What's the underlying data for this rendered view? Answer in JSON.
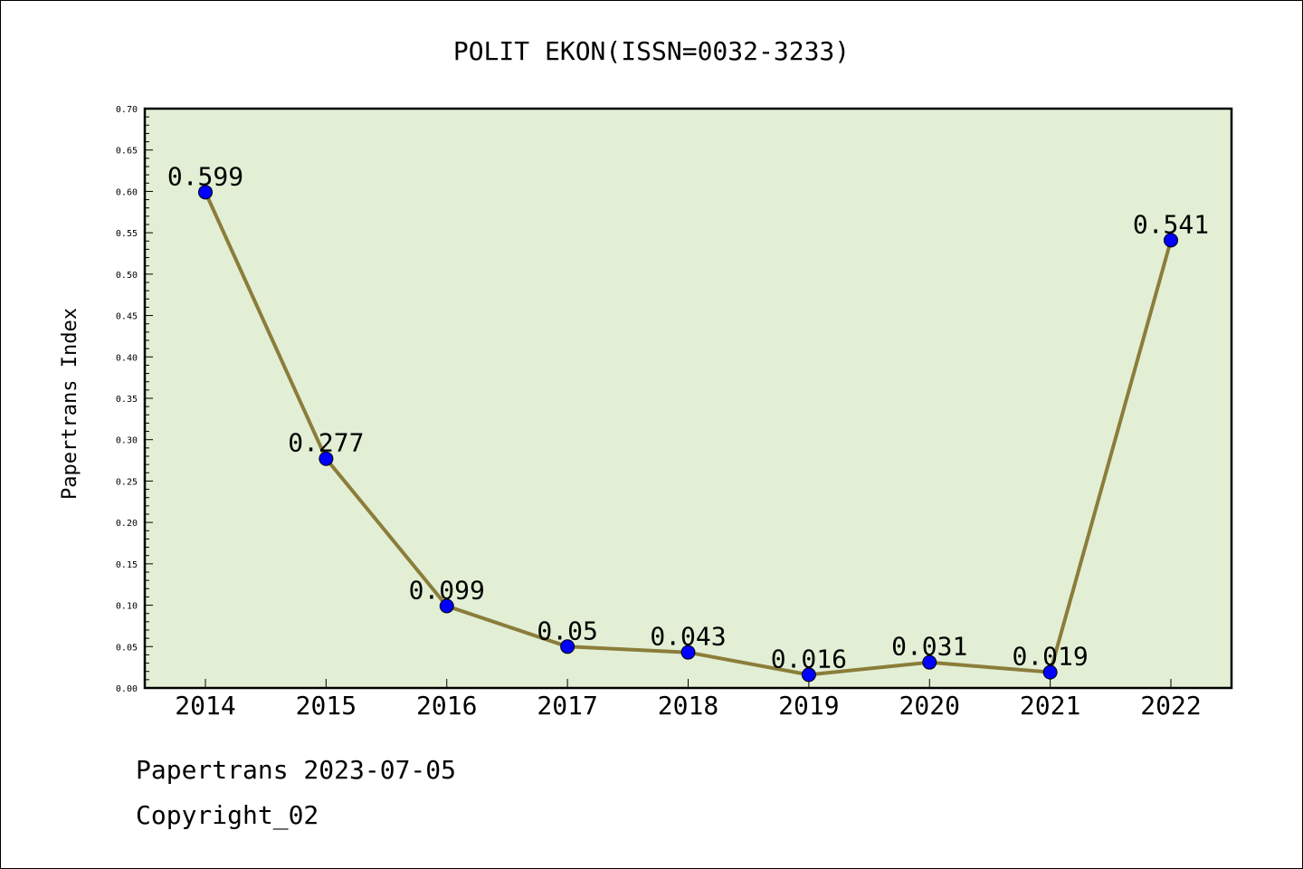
{
  "chart_data": {
    "type": "line",
    "title": "POLIT EKON(ISSN=0032-3233)",
    "xlabel": "",
    "ylabel": "Papertrans Index",
    "categories": [
      "2014",
      "2015",
      "2016",
      "2017",
      "2018",
      "2019",
      "2020",
      "2021",
      "2022"
    ],
    "series": [
      {
        "values": [
          0.599,
          0.277,
          0.099,
          0.05,
          0.043,
          0.016,
          0.031,
          0.019,
          0.541
        ],
        "data_labels": [
          "0.599",
          "0.277",
          "0.099",
          "0.05",
          "0.043",
          "0.016",
          "0.031",
          "0.019",
          "0.541"
        ]
      }
    ],
    "ylim": [
      0,
      0.7
    ],
    "yticks": [
      "0.00",
      "0.05",
      "0.10",
      "0.15",
      "0.20",
      "0.25",
      "0.30",
      "0.35",
      "0.40",
      "0.45",
      "0.50",
      "0.55",
      "0.60",
      "0.65",
      "0.70"
    ],
    "grid": false,
    "legend": "none",
    "colors": {
      "plot_background": "#e2efd5",
      "line": "#8b7d3a",
      "marker": "#0000ff"
    }
  },
  "footer": {
    "source": "Papertrans 2023-07-05",
    "copyright": "Copyright_02"
  }
}
